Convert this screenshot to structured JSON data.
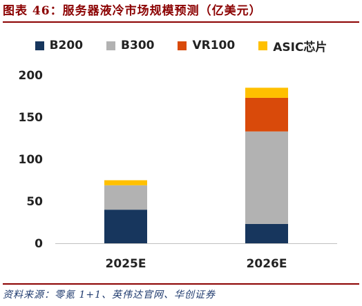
{
  "caption": "图表 46：服务器液冷市场规模预测（亿美元）",
  "source": "资料来源：零氪 1+1、英伟达官网、华创证券",
  "chart_data": {
    "type": "bar",
    "stacked": true,
    "categories": [
      "2025E",
      "2026E"
    ],
    "series": [
      {
        "name": "B200",
        "color": "#17365d",
        "values": [
          40,
          23
        ]
      },
      {
        "name": "B300",
        "color": "#b2b2b2",
        "values": [
          29,
          110
        ]
      },
      {
        "name": "VR100",
        "color": "#d94a0a",
        "values": [
          0,
          40
        ]
      },
      {
        "name": "ASIC芯片",
        "color": "#ffc000",
        "values": [
          6,
          12
        ]
      }
    ],
    "yticks": [
      0,
      50,
      100,
      150,
      200
    ],
    "ylim": [
      0,
      200
    ],
    "grid": false,
    "legend_position": "top"
  }
}
